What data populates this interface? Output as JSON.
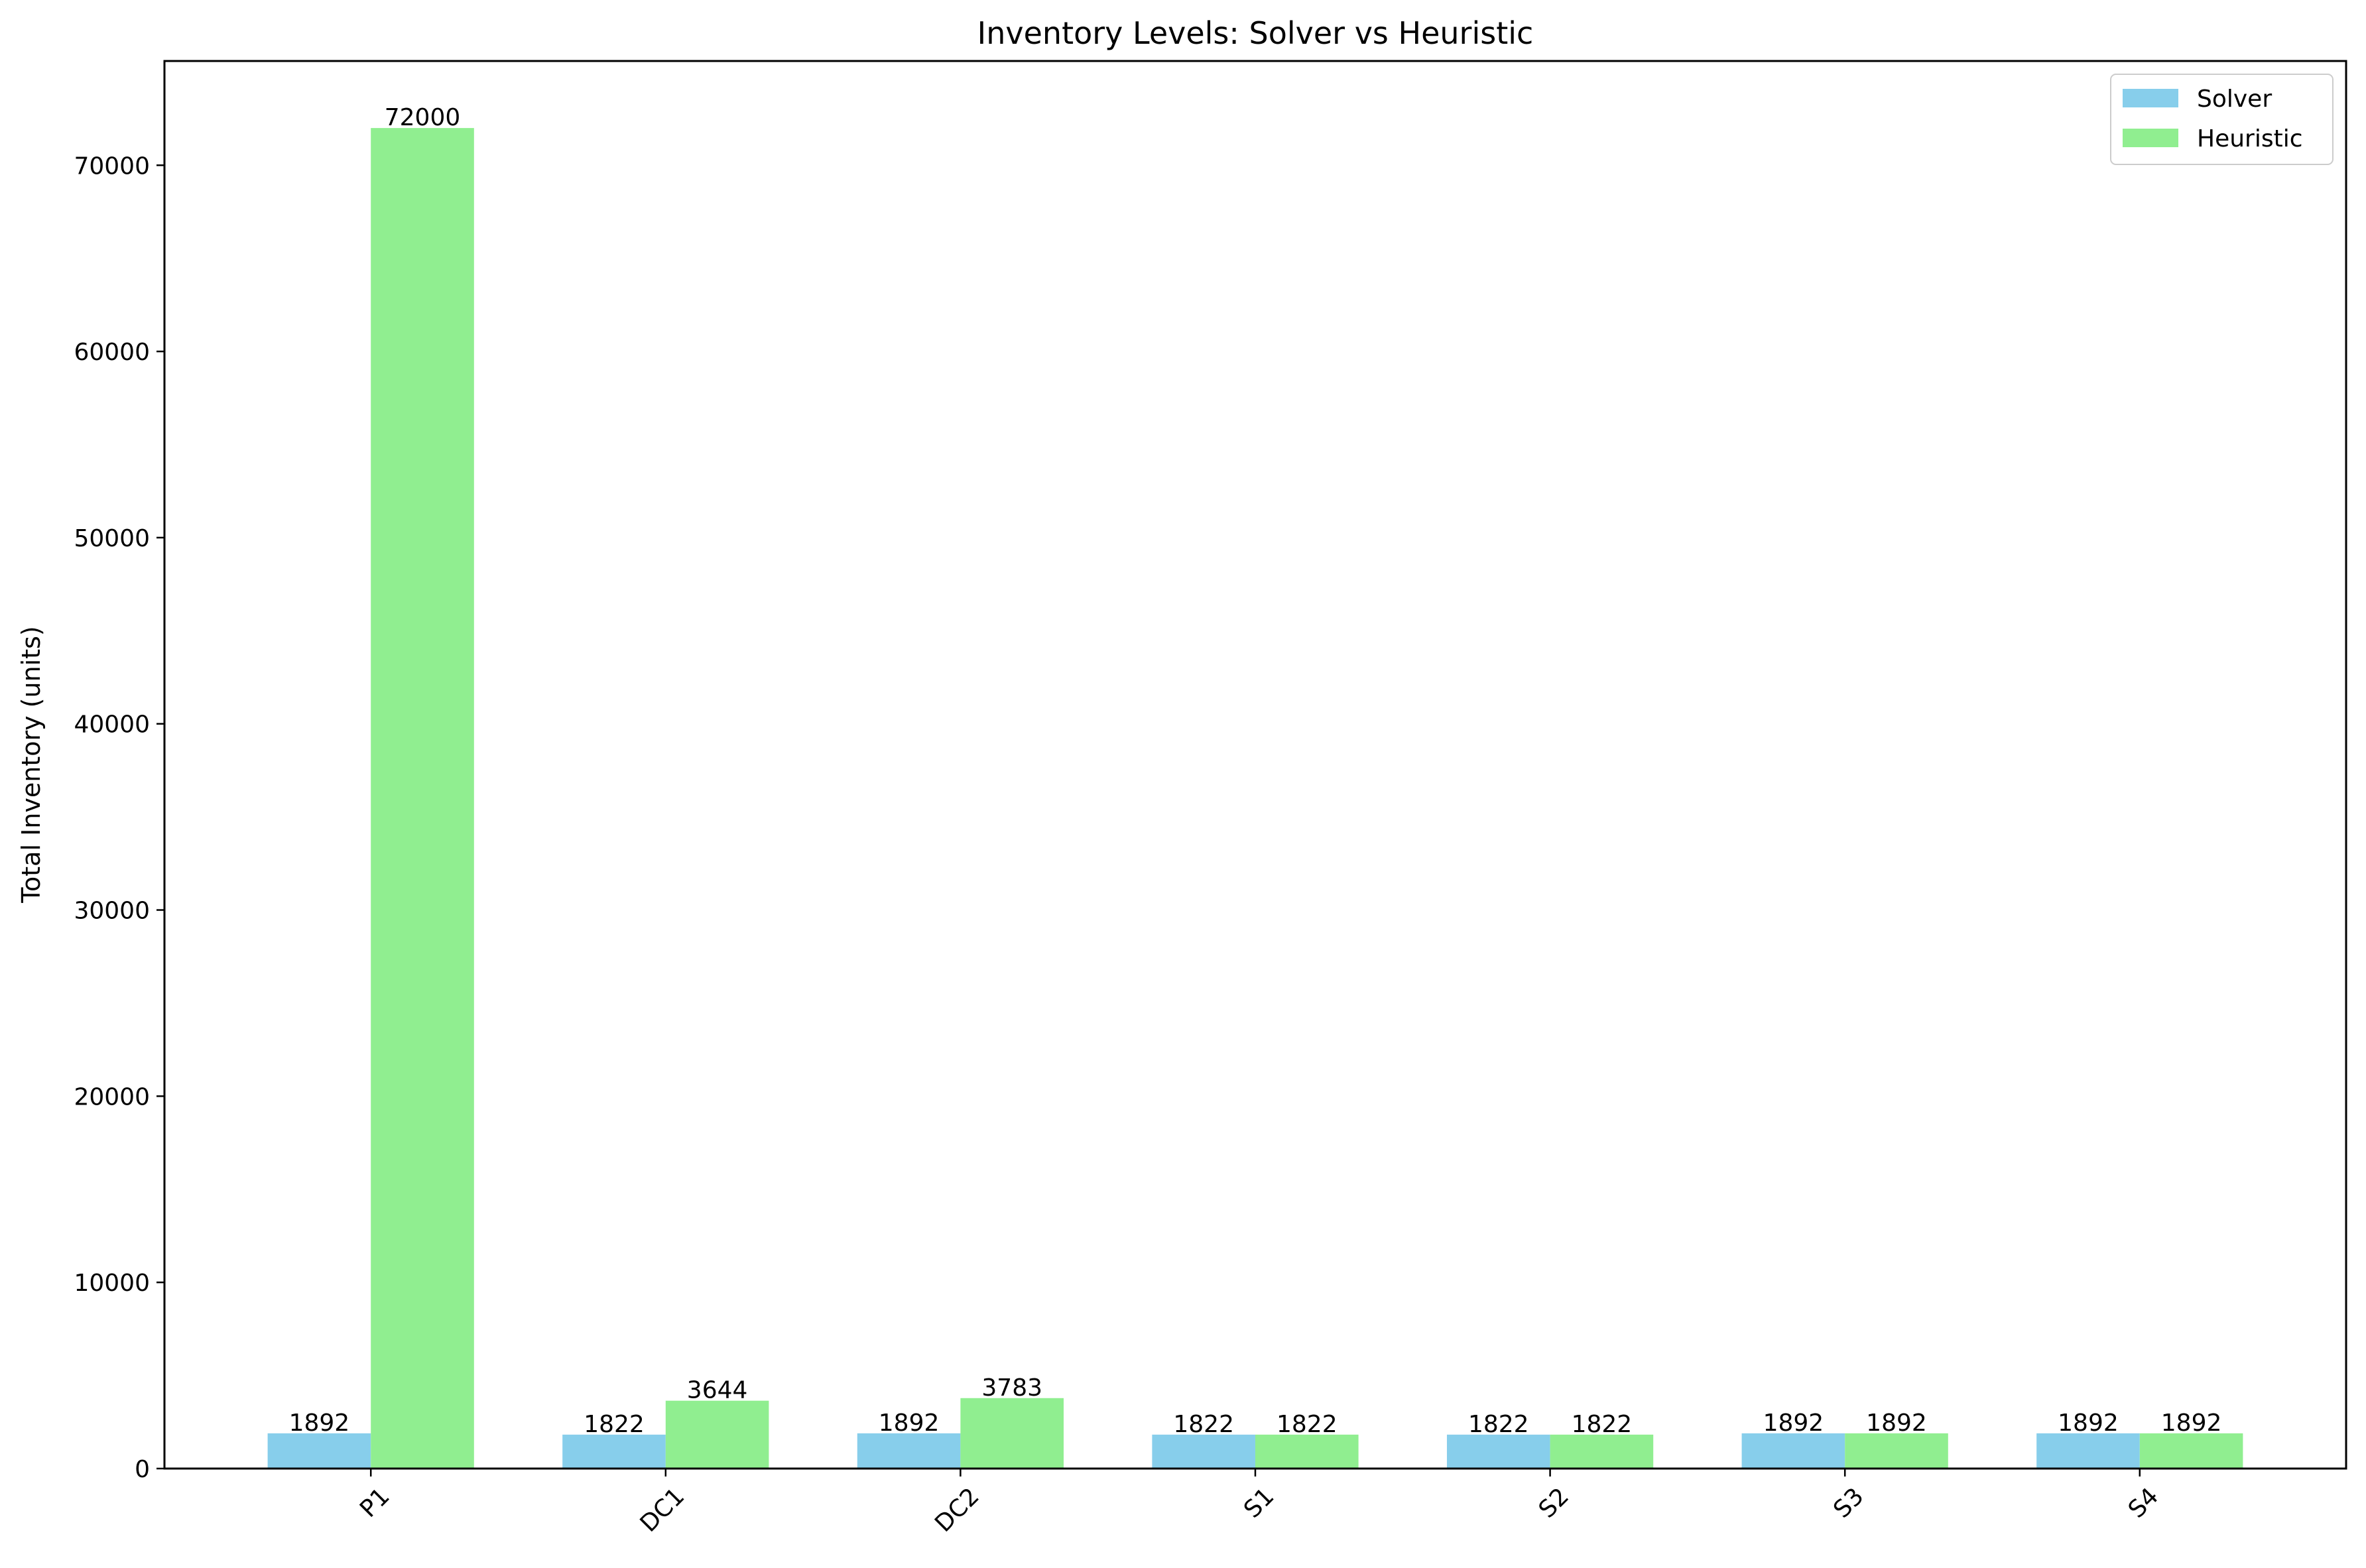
{
  "chart_data": {
    "type": "bar",
    "title": "Inventory Levels: Solver vs Heuristic",
    "xlabel": "",
    "ylabel": "Total Inventory (units)",
    "categories": [
      "P1",
      "DC1",
      "DC2",
      "S1",
      "S2",
      "S3",
      "S4"
    ],
    "series": [
      {
        "name": "Solver",
        "color": "#87ceeb",
        "values": [
          1892,
          1822,
          1892,
          1822,
          1822,
          1892,
          1892
        ]
      },
      {
        "name": "Heuristic",
        "color": "#90ee90",
        "values": [
          72000,
          3644,
          3783,
          1822,
          1822,
          1892,
          1892
        ]
      }
    ],
    "ylim": [
      0,
      75600
    ],
    "yticks": [
      0,
      10000,
      20000,
      30000,
      40000,
      50000,
      60000,
      70000
    ],
    "ytick_labels": [
      "0",
      "10000",
      "20000",
      "30000",
      "40000",
      "50000",
      "60000",
      "70000"
    ],
    "grid": false,
    "legend_position": "top-right",
    "xtick_rotation_deg": 45
  }
}
